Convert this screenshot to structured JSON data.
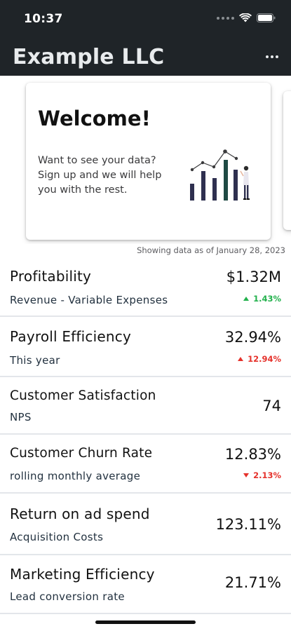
{
  "status_bar": {
    "time": "10:37",
    "icons": [
      "signal-dots-icon",
      "wifi-icon",
      "battery-icon"
    ]
  },
  "app_bar": {
    "title": "Example LLC",
    "more_icon": "more-horizontal-icon"
  },
  "welcome_card": {
    "title": "Welcome!",
    "text": "Want to see your data? Sign up and we will help you with the rest.",
    "illustration": "analytics-person-icon"
  },
  "data_date": "Showing data as of January 28, 2023",
  "colors": {
    "app_bar_bg": "#1f2428",
    "positive": "#22b14c",
    "negative": "#e5312b",
    "divider": "#e3e6ea"
  },
  "metrics": [
    {
      "name": "Profitability",
      "sub": "Revenue - Variable Expenses",
      "value": "$1.32M",
      "change": "1.43%",
      "direction": "up",
      "tone": "positive"
    },
    {
      "name": "Payroll Efficiency",
      "sub": "This year",
      "value": "32.94%",
      "change": "12.94%",
      "direction": "up",
      "tone": "negative"
    },
    {
      "name": "Customer Satisfaction",
      "sub": "NPS",
      "value": "74"
    },
    {
      "name": "Customer Churn Rate",
      "sub": "rolling monthly average",
      "value": "12.83%",
      "change": "2.13%",
      "direction": "down",
      "tone": "negative"
    },
    {
      "name": "Return on ad spend",
      "sub": "Acquisition Costs",
      "value": "123.11%"
    },
    {
      "name": "Marketing Efficiency",
      "sub": "Lead conversion rate",
      "value": "21.71%"
    }
  ]
}
